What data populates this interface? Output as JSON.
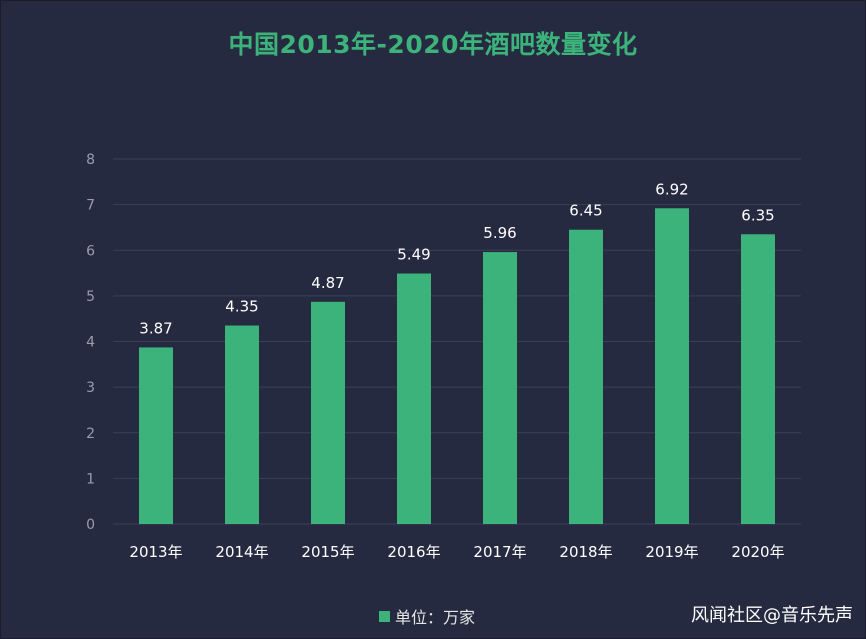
{
  "chart_data": {
    "type": "bar",
    "title": "中国2013年-2020年酒吧数量变化",
    "categories": [
      "2013年",
      "2014年",
      "2015年",
      "2016年",
      "2017年",
      "2018年",
      "2019年",
      "2020年"
    ],
    "values": [
      3.87,
      4.35,
      4.87,
      5.49,
      5.96,
      6.45,
      6.92,
      6.35
    ],
    "data_labels": [
      "3.87",
      "4.35",
      "4.87",
      "5.49",
      "5.96",
      "6.45",
      "6.92",
      "6.35"
    ],
    "yticks": [
      "0",
      "1",
      "2",
      "3",
      "4",
      "5",
      "6",
      "7",
      "8"
    ],
    "ylim": [
      0,
      8
    ],
    "xlabel": "",
    "ylabel": "",
    "grid": true,
    "legend": {
      "placement": "bottom",
      "entries": [
        "单位：万家"
      ]
    },
    "series": [
      {
        "name": "单位：万家",
        "values": [
          3.87,
          4.35,
          4.87,
          5.49,
          5.96,
          6.45,
          6.92,
          6.35
        ]
      }
    ]
  },
  "watermark": "风闻社区@音乐先声",
  "colors": {
    "background": "#262a40",
    "bar": "#3cb37b",
    "title": "#3cb37b",
    "grid": "#3a3f58",
    "tick_text": "#9a9cab",
    "label_text": "#ffffff"
  }
}
